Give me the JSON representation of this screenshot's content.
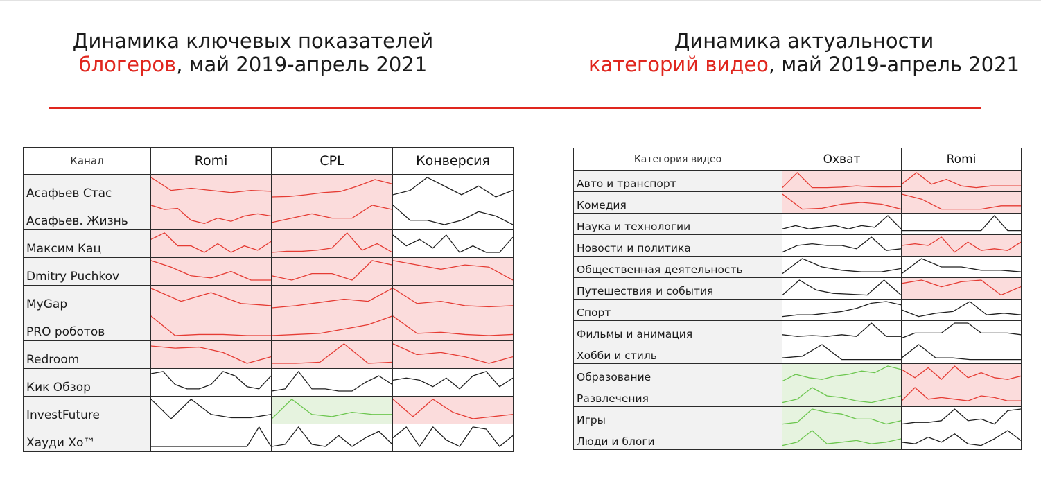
{
  "title_left": {
    "line1": "Динамика ключевых показателей",
    "accent": "блогеров",
    "rest": ", май 2019-апрель 2021"
  },
  "title_right": {
    "line1": "Динамика актуальности",
    "accent": "категорий видео",
    "rest": ", май 2019-апрель 2021"
  },
  "colors": {
    "accent": "#e0261e",
    "bg_red": "#fbdcdc",
    "bg_green": "#e6f3df",
    "line_red": "#e53b33",
    "line_green": "#6cc64f",
    "line_black": "#1f1f1f"
  },
  "chart_data": [
    {
      "type": "table",
      "header": [
        "Канал",
        "Romi",
        "CPL",
        "Конверсия"
      ],
      "rows": [
        {
          "label": "Асафьев Стас",
          "cells": [
            {
              "bg": "red",
              "line": "red",
              "values": [
                10,
                4,
                5,
                4,
                3,
                4,
                3.6
              ]
            },
            {
              "bg": "red",
              "line": "red",
              "values": [
                1,
                1.2,
                2,
                3,
                3.5,
                6,
                9,
                7
              ]
            },
            {
              "bg": "white",
              "line": "black",
              "values": [
                2,
                4,
                10,
                6,
                2,
                6,
                1,
                4
              ]
            }
          ]
        },
        {
          "label": "Асафьев. Жизнь",
          "cells": [
            {
              "bg": "red",
              "line": "red",
              "values": [
                10,
                8,
                8.5,
                3,
                1.5,
                4,
                2.5,
                5,
                6,
                5
              ]
            },
            {
              "bg": "red",
              "line": "red",
              "values": [
                2,
                4,
                6,
                4,
                4,
                10,
                8
              ]
            },
            {
              "bg": "white",
              "line": "black",
              "values": [
                10,
                3,
                3,
                1,
                3,
                7,
                5,
                1
              ]
            }
          ]
        },
        {
          "label": "Максим Кац",
          "cells": [
            {
              "bg": "red",
              "line": "red",
              "values": [
                7,
                10,
                4,
                4,
                1,
                5,
                1,
                4,
                2,
                6
              ]
            },
            {
              "bg": "red",
              "line": "red",
              "values": [
                1,
                1.5,
                1.5,
                2,
                3,
                10,
                2,
                5,
                1
              ]
            },
            {
              "bg": "white",
              "line": "black",
              "values": [
                9,
                4,
                7,
                3,
                9,
                1,
                4,
                1,
                1,
                8
              ]
            }
          ]
        },
        {
          "label": "Dmitry Puchkov",
          "cells": [
            {
              "bg": "red",
              "line": "red",
              "values": [
                10,
                7,
                3,
                2,
                5,
                1,
                1
              ]
            },
            {
              "bg": "red",
              "line": "red",
              "values": [
                3,
                1,
                4,
                4,
                1,
                10,
                8
              ]
            },
            {
              "bg": "red",
              "line": "red",
              "values": [
                10,
                8,
                6,
                8,
                7,
                1
              ]
            }
          ]
        },
        {
          "label": "MyGap",
          "cells": [
            {
              "bg": "red",
              "line": "red",
              "values": [
                10,
                4,
                8,
                3,
                2
              ]
            },
            {
              "bg": "red",
              "line": "red",
              "values": [
                1,
                2,
                3.5,
                5,
                4,
                10
              ]
            },
            {
              "bg": "red",
              "line": "red",
              "values": [
                10,
                3,
                4,
                2,
                1.5,
                2
              ]
            }
          ]
        },
        {
          "label": "PRO роботов",
          "cells": [
            {
              "bg": "red",
              "line": "red",
              "values": [
                10,
                1,
                1.5,
                1.5,
                1,
                1
              ]
            },
            {
              "bg": "red",
              "line": "red",
              "values": [
                1,
                1.5,
                2,
                4,
                6,
                10
              ]
            },
            {
              "bg": "red",
              "line": "red",
              "values": [
                10,
                2,
                2.5,
                1.5,
                1,
                1.5
              ]
            }
          ]
        },
        {
          "label": "Redroom",
          "cells": [
            {
              "bg": "red",
              "line": "red",
              "values": [
                9,
                8,
                8.5,
                6,
                1,
                4
              ]
            },
            {
              "bg": "red",
              "line": "red",
              "values": [
                1,
                1,
                1.5,
                10,
                1,
                1.5
              ]
            },
            {
              "bg": "red",
              "line": "red",
              "values": [
                10,
                5,
                6,
                4,
                1,
                4
              ]
            }
          ]
        },
        {
          "label": "Кик Обзор",
          "cells": [
            {
              "bg": "white",
              "line": "black",
              "values": [
                9,
                10,
                4,
                2,
                2,
                4,
                10,
                8,
                3,
                2,
                8
              ]
            },
            {
              "bg": "white",
              "line": "black",
              "values": [
                1,
                2,
                10,
                2,
                2,
                1,
                1,
                5,
                8,
                4
              ]
            },
            {
              "bg": "white",
              "line": "black",
              "values": [
                6,
                7,
                6,
                3,
                7,
                2,
                8,
                10,
                3,
                7
              ]
            }
          ]
        },
        {
          "label": "InvestFuture",
          "cells": [
            {
              "bg": "white",
              "line": "black",
              "values": [
                10,
                1,
                10,
                3,
                1.5,
                1.5,
                3
              ]
            },
            {
              "bg": "green",
              "line": "green",
              "values": [
                1,
                10,
                3,
                2,
                4,
                3,
                3
              ]
            },
            {
              "bg": "red",
              "line": "red",
              "values": [
                10,
                2,
                10,
                4,
                1,
                2,
                3
              ]
            }
          ]
        },
        {
          "label": "Хауди Хо™",
          "cells": [
            {
              "bg": "white",
              "line": "black",
              "values": [
                1,
                1,
                1,
                1,
                1,
                1,
                1,
                1,
                1,
                10,
                1
              ]
            },
            {
              "bg": "white",
              "line": "black",
              "values": [
                1,
                2,
                10,
                2,
                1,
                6,
                1,
                5,
                8,
                2
              ]
            },
            {
              "bg": "white",
              "line": "black",
              "values": [
                5,
                10,
                1,
                10,
                4,
                1,
                10,
                9,
                1,
                6
              ]
            }
          ]
        }
      ]
    },
    {
      "type": "table",
      "header": [
        "Категория видео",
        "Охват",
        "Romi"
      ],
      "rows": [
        {
          "label": "Авто и транспорт",
          "cells": [
            {
              "bg": "red",
              "line": "red",
              "values": [
                1,
                10,
                1,
                1,
                1.3,
                2,
                1.5,
                1.4,
                1.5
              ]
            },
            {
              "bg": "red",
              "line": "red",
              "values": [
                3,
                10,
                3,
                6,
                2,
                1,
                2,
                2,
                2
              ]
            }
          ]
        },
        {
          "label": "Комедия",
          "cells": [
            {
              "bg": "red",
              "line": "red",
              "values": [
                10,
                1,
                1.5,
                4,
                5,
                4,
                1
              ]
            },
            {
              "bg": "red",
              "line": "red",
              "values": [
                10,
                7,
                1,
                1,
                1,
                3,
                3
              ]
            }
          ]
        },
        {
          "label": "Наука и технологии",
          "cells": [
            {
              "bg": "white",
              "line": "black",
              "values": [
                2,
                4,
                2,
                3,
                4,
                2,
                4,
                3,
                10,
                2
              ]
            },
            {
              "bg": "white",
              "line": "black",
              "values": [
                1,
                1,
                1,
                1,
                1,
                1,
                1,
                10,
                1,
                1
              ]
            }
          ]
        },
        {
          "label": "Новости и политика",
          "cells": [
            {
              "bg": "white",
              "line": "black",
              "values": [
                1,
                5,
                6,
                5,
                5,
                3,
                10,
                2,
                3
              ]
            },
            {
              "bg": "red",
              "line": "red",
              "values": [
                5,
                6,
                5,
                10,
                1,
                7,
                2,
                3,
                2,
                7
              ]
            }
          ]
        },
        {
          "label": "Общественная деятельность",
          "cells": [
            {
              "bg": "white",
              "line": "black",
              "values": [
                1,
                10,
                5,
                3,
                2,
                2,
                4
              ]
            },
            {
              "bg": "white",
              "line": "black",
              "values": [
                1,
                10,
                5,
                5,
                3,
                3,
                2
              ]
            }
          ]
        },
        {
          "label": "Путешествия и события",
          "cells": [
            {
              "bg": "white",
              "line": "black",
              "values": [
                1,
                10,
                4,
                2,
                1.5,
                1,
                10,
                1
              ]
            },
            {
              "bg": "red",
              "line": "red",
              "values": [
                8,
                10,
                6,
                9,
                10,
                1,
                6
              ]
            }
          ]
        },
        {
          "label": "Спорт",
          "cells": [
            {
              "bg": "white",
              "line": "black",
              "values": [
                1,
                2,
                2,
                3,
                4,
                6,
                9,
                10,
                8
              ]
            },
            {
              "bg": "white",
              "line": "black",
              "values": [
                5,
                1,
                3,
                4,
                10,
                2,
                3,
                2
              ]
            }
          ]
        },
        {
          "label": "Фильмы и анимация",
          "cells": [
            {
              "bg": "white",
              "line": "black",
              "values": [
                3,
                2,
                2.5,
                2,
                3,
                2,
                10,
                2,
                2
              ]
            },
            {
              "bg": "white",
              "line": "black",
              "values": [
                1,
                4,
                4,
                4,
                10,
                10,
                4,
                4,
                4,
                3
              ]
            }
          ]
        },
        {
          "label": "Хобби и стиль",
          "cells": [
            {
              "bg": "white",
              "line": "black",
              "values": [
                2,
                3,
                10,
                1,
                1,
                1,
                1
              ]
            },
            {
              "bg": "white",
              "line": "black",
              "values": [
                2,
                10,
                2,
                2,
                1,
                1,
                1,
                1
              ]
            }
          ]
        },
        {
          "label": "Образование",
          "cells": [
            {
              "bg": "green",
              "line": "green",
              "values": [
                1,
                5,
                3,
                2,
                4,
                5,
                7,
                6,
                10,
                8
              ]
            },
            {
              "bg": "red",
              "line": "red",
              "values": [
                8,
                3,
                9,
                2,
                10,
                3,
                6,
                3,
                2,
                4
              ]
            }
          ]
        },
        {
          "label": "Развлечения",
          "cells": [
            {
              "bg": "green",
              "line": "green",
              "values": [
                1,
                3,
                10,
                5,
                4,
                2,
                1,
                3,
                5
              ]
            },
            {
              "bg": "red",
              "line": "red",
              "values": [
                2,
                10,
                3,
                4,
                3,
                2,
                5,
                4,
                2,
                2
              ]
            }
          ]
        },
        {
          "label": "Игры",
          "cells": [
            {
              "bg": "green",
              "line": "green",
              "values": [
                1,
                2,
                10,
                8,
                7,
                4,
                4,
                1,
                3
              ]
            },
            {
              "bg": "white",
              "line": "black",
              "values": [
                1,
                2,
                2,
                3,
                10,
                3,
                4,
                1,
                9,
                10
              ]
            }
          ]
        },
        {
          "label": "Люди и блоги",
          "cells": [
            {
              "bg": "green",
              "line": "green",
              "values": [
                1,
                3,
                10,
                2,
                3,
                4,
                2,
                3,
                5
              ]
            },
            {
              "bg": "white",
              "line": "black",
              "values": [
                3,
                2,
                6,
                3,
                8,
                2,
                1,
                5,
                10,
                4
              ]
            }
          ]
        }
      ]
    }
  ]
}
